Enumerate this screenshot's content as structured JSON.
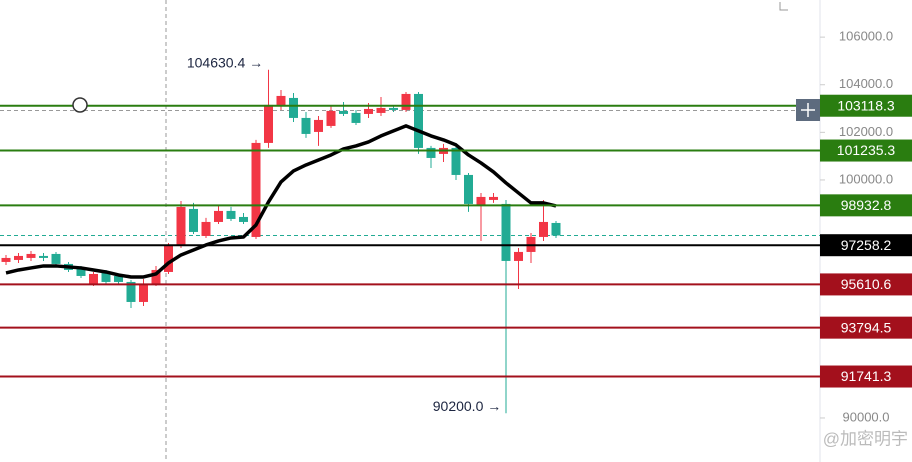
{
  "chart_data": {
    "type": "candlestick",
    "ylim": [
      88150,
      107560
    ],
    "yticks": [
      {
        "value": 90000,
        "label": "90000.0"
      },
      {
        "value": 100000,
        "label": "100000.0"
      },
      {
        "value": 102000,
        "label": "102000.0"
      },
      {
        "value": 104000,
        "label": "104000.0"
      },
      {
        "value": 106000,
        "label": "106000.0"
      }
    ],
    "up_color": "#f23645",
    "down_color": "#22ab94",
    "open": [
      96555,
      96639,
      96723,
      96807,
      96891,
      96471,
      96303,
      95630,
      96134,
      95966,
      95714,
      94874,
      95630,
      96134,
      97227,
      98782,
      97647,
      98235,
      98698,
      98445,
      97605,
      101555,
      103109,
      103445,
      102605,
      102017,
      102269,
      102899,
      102815,
      102773,
      102815,
      103025,
      102941,
      103613,
      101345,
      101093,
      101345,
      100210,
      98950,
      99160,
      98992,
      96597,
      96975,
      97605,
      98193
    ],
    "high": [
      96849,
      96933,
      97017,
      96933,
      96975,
      96555,
      96387,
      96134,
      96218,
      96050,
      95798,
      95840,
      96387,
      97353,
      99118,
      99034,
      98404,
      98950,
      98866,
      98613,
      101681,
      104630.4,
      103781,
      103655,
      102857,
      102689,
      103151,
      103277,
      102941,
      103235,
      103487,
      103151,
      103697,
      103697,
      101429,
      101513,
      101429,
      100294,
      99454,
      99454,
      99160,
      97143,
      97773,
      99160,
      98277
    ],
    "low": [
      96429,
      96513,
      96597,
      96597,
      96387,
      96134,
      95882,
      95546,
      95630,
      95630,
      94622,
      94706,
      95546,
      96050,
      97143,
      97731,
      97563,
      98151,
      98277,
      98151,
      97521,
      101345,
      102941,
      102437,
      101765,
      101429,
      102185,
      102689,
      102311,
      102605,
      102689,
      102857,
      102857,
      101093,
      100504,
      100756,
      100000,
      98656,
      97437,
      99034,
      90200,
      95420,
      96513,
      97437,
      97563
    ],
    "close": [
      96723,
      96807,
      96891,
      96723,
      96471,
      96218,
      95966,
      96050,
      95714,
      95714,
      94874,
      95588,
      96218,
      97227,
      98866,
      97815,
      98235,
      98698,
      98361,
      98235,
      101555,
      103151,
      103529,
      102605,
      101933,
      102521,
      102899,
      102773,
      102395,
      102983,
      103025,
      102941,
      103613,
      101345,
      100924,
      101345,
      100210,
      98992,
      99286,
      99286,
      96597,
      96975,
      97605,
      98235,
      97667
    ],
    "ma": {
      "color": "#000000",
      "values": [
        96092,
        96218,
        96303,
        96387,
        96387,
        96345,
        96303,
        96218,
        96134,
        96008,
        95924,
        95924,
        96050,
        96513,
        96849,
        97059,
        97269,
        97437,
        97563,
        97605,
        98109,
        99076,
        99916,
        100378,
        100630,
        100840,
        101050,
        101303,
        101429,
        101597,
        101849,
        102059,
        102269,
        102059,
        101849,
        101681,
        101471,
        101050,
        100714,
        100336,
        99874,
        99454,
        99034,
        99034,
        98908
      ]
    },
    "levels": [
      {
        "value": 103118.3,
        "color": "#2a7d10"
      },
      {
        "value": 101235.3,
        "color": "#2a7d10"
      },
      {
        "value": 98932.8,
        "color": "#2a7d10"
      },
      {
        "value": 97258.2,
        "color": "#000000"
      },
      {
        "value": 95610.6,
        "color": "#a3101c"
      },
      {
        "value": 93794.5,
        "color": "#a3101c"
      },
      {
        "value": 91741.3,
        "color": "#a3101c"
      }
    ],
    "reference_line": 102920,
    "annotations": [
      {
        "value": 104630.4,
        "label": "104630.4 →"
      },
      {
        "value": 90200,
        "label": "90200.0 →"
      }
    ],
    "watermark": "@加密明宇"
  }
}
